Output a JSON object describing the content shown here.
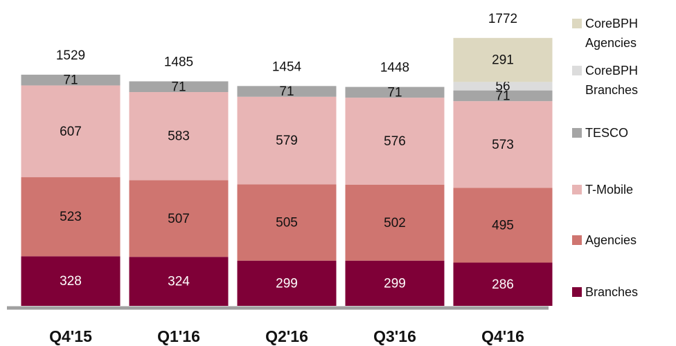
{
  "chart_data": {
    "type": "stacked_bar",
    "categories": [
      "Q4'15",
      "Q1'16",
      "Q2'16",
      "Q3'16",
      "Q4'16"
    ],
    "series": [
      {
        "name": "Branches",
        "color": "#7f0037",
        "values": [
          328,
          324,
          299,
          299,
          286
        ]
      },
      {
        "name": "Agencies",
        "color": "#cf7570",
        "values": [
          523,
          507,
          505,
          502,
          495
        ]
      },
      {
        "name": "T-Mobile",
        "color": "#e8b5b5",
        "values": [
          607,
          583,
          579,
          576,
          573
        ]
      },
      {
        "name": "TESCO",
        "color": "#a5a5a5",
        "values": [
          71,
          71,
          71,
          71,
          71
        ]
      },
      {
        "name": "CoreBPH Branches",
        "color": "#dcdcdc",
        "values": [
          null,
          null,
          null,
          null,
          56
        ]
      },
      {
        "name": "CoreBPH Agencies",
        "color": "#ddd8c0",
        "values": [
          null,
          null,
          null,
          null,
          291
        ]
      }
    ],
    "totals": [
      1529,
      1485,
      1454,
      1448,
      1772
    ]
  }
}
